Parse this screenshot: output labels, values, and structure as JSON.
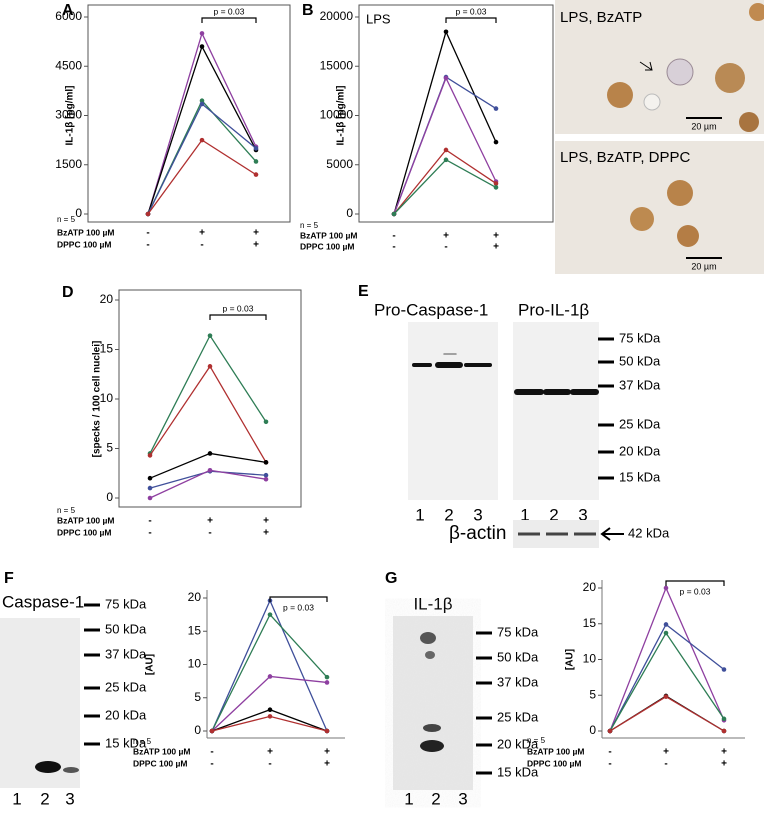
{
  "chart_data": [
    {
      "type": "line",
      "panel": "A",
      "y_label": "IL-1β [pg/ml]",
      "note": "n = 5",
      "x_labels": [
        "BzATP 100 µM",
        "DPPC 100 µM"
      ],
      "categories": [
        [
          "-",
          "-"
        ],
        [
          "+",
          "-"
        ],
        [
          "+",
          "+"
        ]
      ],
      "annotation": "p = 0.03",
      "ylim": [
        0,
        6000
      ],
      "yticks": [
        0,
        1500,
        3000,
        4500,
        6000
      ],
      "series": [
        {
          "color": "#8e3fa0",
          "values": [
            0,
            5500,
            2050
          ]
        },
        {
          "color": "#000000",
          "values": [
            0,
            5100,
            1950
          ]
        },
        {
          "color": "#2e7d55",
          "values": [
            0,
            3450,
            1600
          ]
        },
        {
          "color": "#3f4f9a",
          "values": [
            0,
            3350,
            2000
          ]
        },
        {
          "color": "#b03030",
          "values": [
            0,
            2250,
            1200
          ]
        }
      ]
    },
    {
      "type": "line",
      "panel": "B",
      "subtitle": "LPS",
      "y_label": "IL-1β [pg/ml]",
      "note": "n = 5",
      "x_labels": [
        "BzATP 100 µM",
        "DPPC 100 µM"
      ],
      "categories": [
        [
          "-",
          "-"
        ],
        [
          "+",
          "-"
        ],
        [
          "+",
          "+"
        ]
      ],
      "annotation": "p = 0.03",
      "ylim": [
        0,
        20000
      ],
      "yticks": [
        0,
        5000,
        10000,
        15000,
        20000
      ],
      "series": [
        {
          "color": "#000000",
          "values": [
            0,
            18500,
            7300
          ]
        },
        {
          "color": "#3f4f9a",
          "values": [
            0,
            13900,
            10700
          ]
        },
        {
          "color": "#8e3fa0",
          "values": [
            0,
            13800,
            3300
          ]
        },
        {
          "color": "#b03030",
          "values": [
            0,
            6500,
            3100
          ]
        },
        {
          "color": "#2e7d55",
          "values": [
            0,
            5500,
            2700
          ]
        }
      ]
    },
    {
      "type": "line",
      "panel": "D",
      "y_label": "[specks / 100 cell nuclei]",
      "note": "n = 5",
      "x_labels": [
        "BzATP 100 µM",
        "DPPC 100 µM"
      ],
      "categories": [
        [
          "-",
          "-"
        ],
        [
          "+",
          "-"
        ],
        [
          "+",
          "+"
        ]
      ],
      "annotation": "p = 0.03",
      "ylim": [
        0,
        20
      ],
      "yticks": [
        0,
        5,
        10,
        15,
        20
      ],
      "series": [
        {
          "color": "#2e7d55",
          "values": [
            4.5,
            16.4,
            7.7
          ]
        },
        {
          "color": "#b03030",
          "values": [
            4.3,
            13.3,
            3.6
          ]
        },
        {
          "color": "#000000",
          "values": [
            2.0,
            4.5,
            3.6
          ]
        },
        {
          "color": "#3f4f9a",
          "values": [
            1.0,
            2.7,
            2.3
          ]
        },
        {
          "color": "#8e3fa0",
          "values": [
            0.0,
            2.8,
            1.9
          ]
        }
      ]
    },
    {
      "type": "line",
      "y_label": "[AU]",
      "note": "n = 5",
      "x_labels": [
        "BzATP 100 µM",
        "DPPC 100 µM"
      ],
      "categories": [
        [
          "-",
          "-"
        ],
        [
          "+",
          "-"
        ],
        [
          "+",
          "+"
        ]
      ],
      "annotation": "p = 0.03",
      "ylim": [
        0,
        20
      ],
      "yticks": [
        0,
        5,
        10,
        15,
        20
      ],
      "series": [
        {
          "color": "#3f4f9a",
          "values": [
            0,
            19.6,
            0
          ]
        },
        {
          "color": "#2e7d55",
          "values": [
            0,
            17.5,
            8.1
          ]
        },
        {
          "color": "#8e3fa0",
          "values": [
            0,
            8.2,
            7.3
          ]
        },
        {
          "color": "#000000",
          "values": [
            0,
            3.2,
            0
          ]
        },
        {
          "color": "#b03030",
          "values": [
            0,
            2.2,
            0
          ]
        }
      ]
    },
    {
      "type": "line",
      "y_label": "[AU]",
      "note": "n = 5",
      "x_labels": [
        "BzATP 100 µM",
        "DPPC 100 µM"
      ],
      "categories": [
        [
          "-",
          "-"
        ],
        [
          "+",
          "-"
        ],
        [
          "+",
          "+"
        ]
      ],
      "annotation": "p = 0.03",
      "ylim": [
        0,
        20
      ],
      "yticks": [
        0,
        5,
        10,
        15,
        20
      ],
      "series": [
        {
          "color": "#8e3fa0",
          "values": [
            0,
            20.0,
            1.5
          ]
        },
        {
          "color": "#3f4f9a",
          "values": [
            0,
            14.9,
            8.6
          ]
        },
        {
          "color": "#2e7d55",
          "values": [
            0,
            13.7,
            1.7
          ]
        },
        {
          "color": "#000000",
          "values": [
            0,
            4.9,
            0
          ]
        },
        {
          "color": "#b03030",
          "values": [
            0,
            4.8,
            0
          ]
        }
      ]
    }
  ],
  "panel_c": {
    "label": "C",
    "images": [
      {
        "caption": "LPS, BzATP",
        "scale": "20 µm"
      },
      {
        "caption": "LPS, BzATP, DPPC",
        "scale": "20 µm"
      }
    ]
  },
  "panel_e": {
    "label": "E",
    "blots": [
      {
        "title": "Pro-Caspase-1",
        "lanes": [
          "1",
          "2",
          "3"
        ]
      },
      {
        "title": "Pro-IL-1β",
        "lanes": [
          "1",
          "2",
          "3"
        ]
      }
    ],
    "markers": [
      "75 kDa",
      "50 kDa",
      "37 kDa",
      "25 kDa",
      "20 kDa",
      "15 kDa"
    ],
    "actin": "β-actin",
    "actin_size": "42 kDa"
  },
  "panel_f": {
    "label": "F",
    "title": "Caspase-1",
    "lanes": [
      "1",
      "2",
      "3"
    ],
    "markers": [
      "75 kDa",
      "50 kDa",
      "37 kDa",
      "25 kDa",
      "20 kDa",
      "15 kDa"
    ]
  },
  "panel_g": {
    "label": "G",
    "title": "IL-1β",
    "lanes": [
      "1",
      "2",
      "3"
    ],
    "markers": [
      "75 kDa",
      "50 kDa",
      "37 kDa",
      "25 kDa",
      "20 kDa",
      "15 kDa"
    ]
  }
}
